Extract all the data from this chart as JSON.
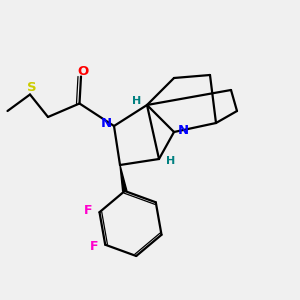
{
  "bg_color": "#f0f0f0",
  "atom_colors": {
    "N_amide": "#0000ff",
    "N_bridge": "#0000ff",
    "O": "#ff0000",
    "S": "#cccc00",
    "F": "#ff00cc",
    "H": "#008080",
    "C": "#000000"
  },
  "bond_color": "#000000",
  "bond_width": 1.6,
  "title": ""
}
